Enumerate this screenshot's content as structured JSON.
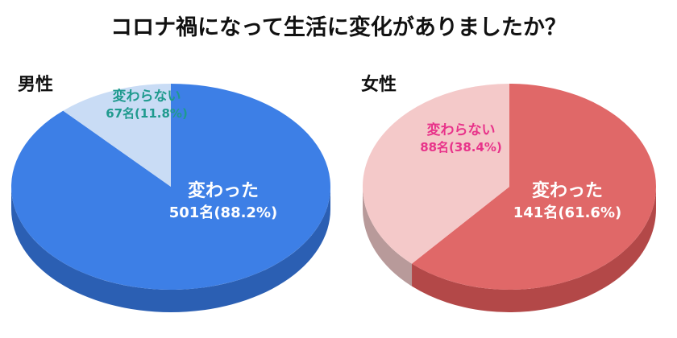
{
  "title": "コロナ禍になって生活に変化がありましたか？",
  "chart_data": [
    {
      "type": "pie",
      "title": "男性",
      "slices": [
        {
          "label": "変わった",
          "count_label": "501名(88.2%)",
          "value": 501,
          "percent": 88.2,
          "color": "#3d7fe6",
          "side_color": "#2b5fb3",
          "label_color": "#ffffff"
        },
        {
          "label": "変わらない",
          "count_label": "67名(11.8%)",
          "value": 67,
          "percent": 11.8,
          "color": "#c9dcf5",
          "side_color": "#9fb3cf",
          "label_color": "#1f9a8e"
        }
      ]
    },
    {
      "type": "pie",
      "title": "女性",
      "slices": [
        {
          "label": "変わった",
          "count_label": "141名(61.6%)",
          "value": 141,
          "percent": 61.6,
          "color": "#e06868",
          "side_color": "#b34848",
          "label_color": "#ffffff"
        },
        {
          "label": "変わらない",
          "count_label": "88名(38.4%)",
          "value": 88,
          "percent": 38.4,
          "color": "#f4c9c9",
          "side_color": "#b89a9a",
          "label_color": "#e8338a"
        }
      ]
    }
  ]
}
